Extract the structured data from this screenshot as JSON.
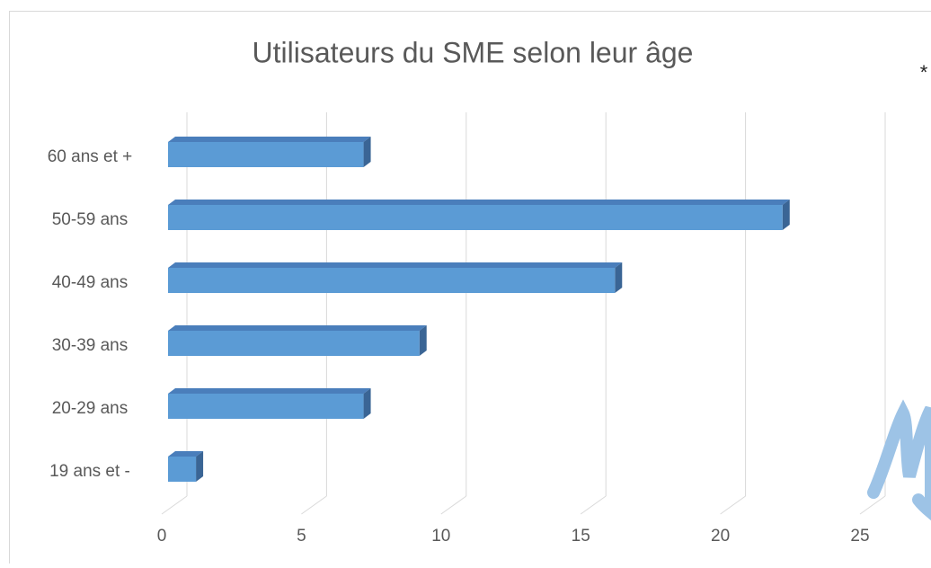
{
  "chart_data": {
    "type": "bar3d_horizontal",
    "title": "Utilisateurs du SME selon leur âge",
    "annotation": "*",
    "categories": [
      "60 ans et +",
      "50-59 ans",
      "40-49 ans",
      "30-39 ans",
      "20-29 ans",
      "19 ans et -"
    ],
    "values": [
      7,
      22,
      16,
      9,
      7,
      1
    ],
    "color": "#5b9bd5",
    "xlim": [
      0,
      25
    ],
    "xticks": [
      0,
      5,
      10,
      15,
      20,
      25
    ],
    "grid": true
  }
}
